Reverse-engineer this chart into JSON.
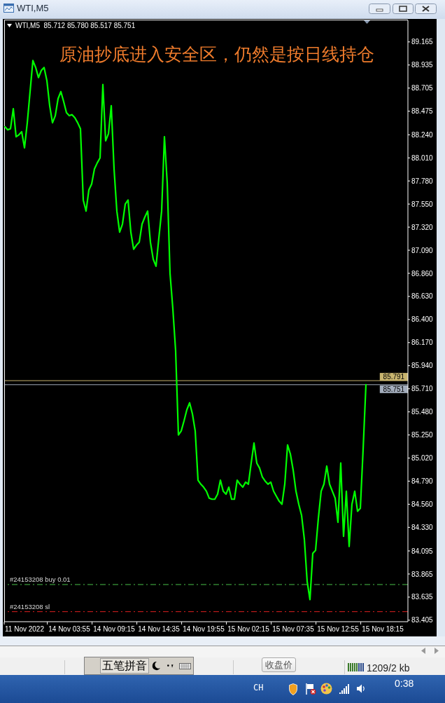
{
  "chart_data": {
    "type": "line",
    "title": "原油抄底进入安全区，仍然是按日线持仓",
    "subtitle": "WTI,M5  85.712 85.780 85.517 85.751",
    "categories": [
      null,
      null,
      null,
      null,
      null,
      null,
      null,
      "11 Nov 2022",
      null,
      null,
      null,
      null,
      null,
      null,
      null,
      null,
      null,
      null,
      null,
      null,
      null,
      null,
      null,
      "14 Nov 03:55",
      null,
      null,
      null,
      null,
      null,
      null,
      null,
      null,
      null,
      null,
      null,
      null,
      null,
      null,
      null,
      "14 Nov 09:15",
      null,
      null,
      null,
      null,
      null,
      null,
      null,
      null,
      null,
      null,
      null,
      null,
      null,
      null,
      null,
      "14 Nov 14:35",
      null,
      null,
      null,
      null,
      null,
      null,
      null,
      null,
      null,
      null,
      null,
      null,
      null,
      null,
      null,
      "14 Nov 19:55",
      null,
      null,
      null,
      null,
      null,
      null,
      null,
      null,
      null,
      null,
      null,
      null,
      null,
      null,
      null,
      "15 Nov 02:15",
      null,
      null,
      null,
      null,
      null,
      null,
      null,
      null,
      null,
      null,
      null,
      null,
      null,
      null,
      null,
      "15 Nov 07:35",
      null,
      null,
      null,
      null,
      null,
      null,
      null,
      null,
      null,
      null,
      null,
      null,
      null,
      null,
      null,
      "15 Nov 12:55",
      null,
      null,
      null,
      null,
      null,
      null,
      null,
      null,
      null,
      null,
      null,
      null,
      null,
      null,
      null,
      "15 Nov 18:15",
      null,
      null,
      null,
      null,
      null,
      null,
      null,
      null,
      null
    ],
    "series": [
      {
        "color": "#00ff00",
        "values": [
          88.32,
          88.29,
          88.3,
          88.5,
          88.22,
          88.24,
          88.27,
          88.11,
          88.36,
          88.67,
          88.98,
          88.91,
          88.81,
          88.88,
          88.91,
          88.78,
          88.53,
          88.36,
          88.43,
          88.6,
          88.67,
          88.57,
          88.46,
          88.43,
          88.44,
          88.41,
          88.36,
          88.3,
          87.59,
          87.48,
          87.69,
          87.75,
          87.9,
          87.96,
          88.01,
          88.74,
          88.18,
          88.25,
          88.53,
          87.9,
          87.48,
          87.27,
          87.35,
          87.55,
          87.59,
          87.27,
          87.1,
          87.14,
          87.17,
          87.35,
          87.42,
          87.48,
          87.17,
          87.0,
          86.93,
          87.21,
          87.48,
          88.22,
          87.76,
          86.86,
          86.51,
          86.09,
          85.25,
          85.29,
          85.39,
          85.5,
          85.57,
          85.46,
          85.29,
          84.8,
          84.76,
          84.73,
          84.69,
          84.62,
          84.61,
          84.61,
          84.66,
          84.8,
          84.69,
          84.66,
          84.73,
          84.61,
          84.61,
          84.8,
          84.76,
          84.73,
          84.78,
          84.76,
          84.97,
          85.17,
          84.97,
          84.92,
          84.83,
          84.79,
          84.76,
          84.78,
          84.69,
          84.64,
          84.59,
          84.56,
          84.76,
          85.15,
          85.06,
          84.9,
          84.69,
          84.56,
          84.45,
          84.21,
          83.79,
          83.61,
          84.07,
          84.1,
          84.42,
          84.69,
          84.76,
          84.94,
          84.76,
          84.69,
          84.62,
          84.38,
          84.97,
          84.24,
          84.69,
          84.14,
          84.56,
          84.69,
          84.49,
          84.52,
          85.11,
          85.75,
          null,
          null,
          null,
          null,
          null,
          null,
          null,
          null,
          null,
          null,
          null,
          null,
          null,
          null,
          null
        ]
      }
    ],
    "line_style": "solid",
    "ylim": [
      83.39,
      89.38
    ],
    "yticks": [
      89.165,
      88.935,
      88.705,
      88.475,
      {
        "value": 88.24,
        "label": "88.240"
      },
      {
        "value": 88.01,
        "label": "88.010"
      },
      {
        "value": 87.78,
        "label": "87.780"
      },
      {
        "value": 87.55,
        "label": "87.550"
      },
      {
        "value": 87.32,
        "label": "87.320"
      },
      {
        "value": 87.09,
        "label": "87.090"
      },
      {
        "value": 86.86,
        "label": "86.860"
      },
      {
        "value": 86.63,
        "label": "86.630"
      },
      {
        "value": 86.4,
        "label": "86.400"
      },
      {
        "value": 86.17,
        "label": "86.170"
      },
      {
        "value": 85.94,
        "label": "85.940"
      },
      {
        "value": 85.71,
        "label": "85.710"
      },
      {
        "value": 85.48,
        "label": "85.480"
      },
      {
        "value": 85.25,
        "label": "85.250"
      },
      {
        "value": 85.02,
        "label": "85.020"
      },
      {
        "value": 84.79,
        "label": "84.790"
      },
      {
        "value": 84.56,
        "label": "84.560"
      },
      {
        "value": 84.33,
        "label": "84.330"
      },
      84.095,
      83.865,
      83.635,
      83.405
    ],
    "ref_lines": [
      {
        "axis": "y",
        "value": 85.791,
        "label": "85.791",
        "color": "#c8b46e",
        "line_style": "solid"
      },
      {
        "axis": "y",
        "value": 85.751,
        "label": "85.751",
        "color": "#a4aebd",
        "line_style": "solid"
      },
      {
        "axis": "y",
        "value": 83.76,
        "label": "#24153208 buy 0.01",
        "color": "#48c048",
        "line_style": "dashed"
      },
      {
        "axis": "y",
        "value": 83.49,
        "label": "#24153208 sl",
        "color": "#e02020",
        "line_style": "dashed"
      }
    ],
    "annotations": [
      "WTI,M5",
      "五笔拼音",
      "收盘价",
      "1209/2 kb",
      "CH",
      "0:38"
    ]
  }
}
